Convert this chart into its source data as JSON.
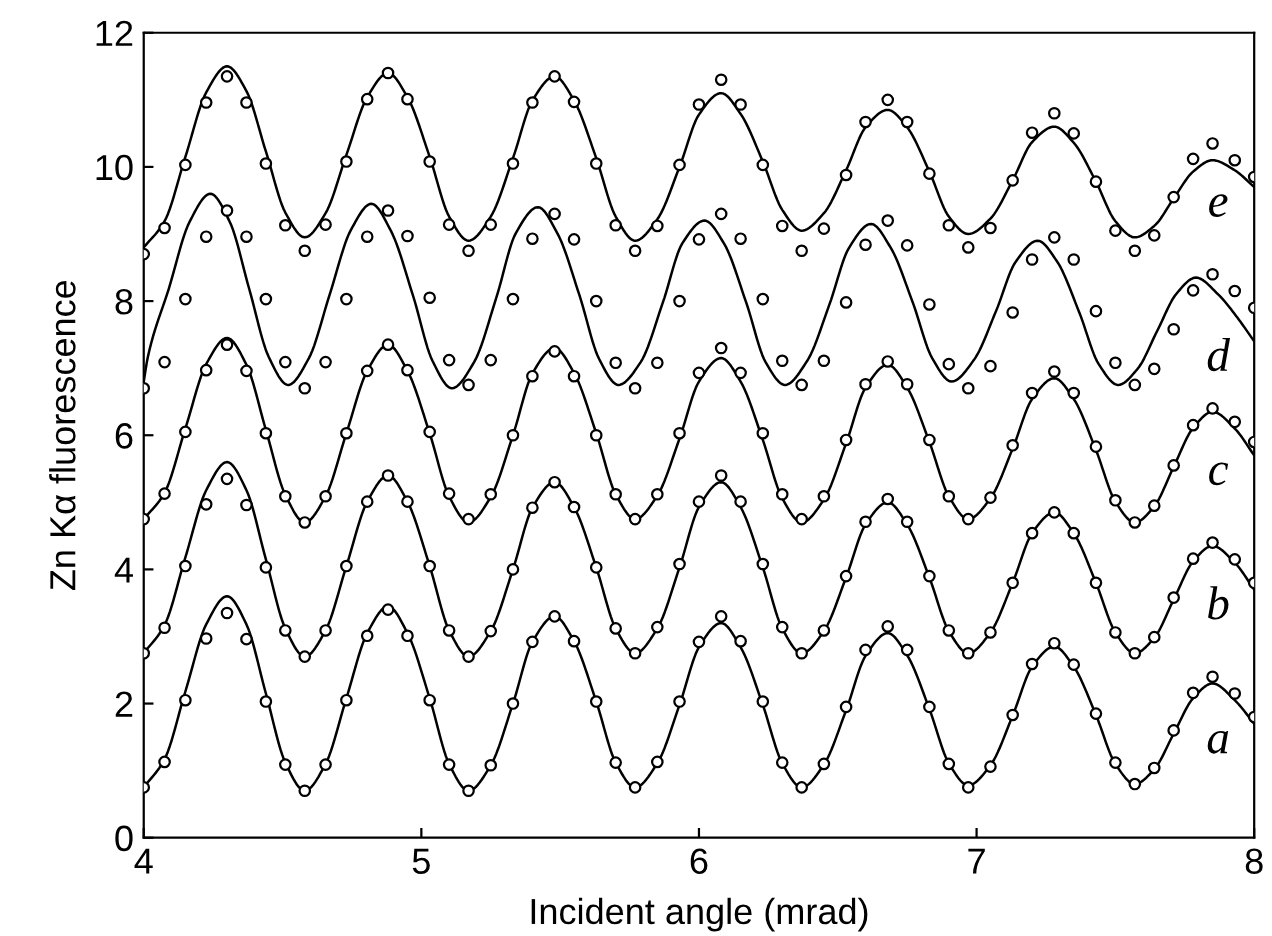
{
  "chart_data": {
    "type": "line",
    "xlabel": "Incident angle (mrad)",
    "ylabel": "Zn Kα fluorescence",
    "xlim": [
      4,
      8
    ],
    "xticks": [
      4,
      5,
      6,
      7,
      8
    ],
    "ylim": [
      0,
      12
    ],
    "yticks": [
      0,
      2,
      4,
      6,
      8,
      10,
      12
    ],
    "grid": false,
    "legend": false,
    "x": [
      4.0,
      4.075,
      4.15,
      4.225,
      4.3,
      4.37,
      4.44,
      4.51,
      4.58,
      4.655,
      4.73,
      4.805,
      4.88,
      4.95,
      5.03,
      5.1,
      5.17,
      5.25,
      5.33,
      5.4,
      5.48,
      5.55,
      5.63,
      5.7,
      5.77,
      5.85,
      5.93,
      6.0,
      6.08,
      6.15,
      6.23,
      6.3,
      6.37,
      6.45,
      6.53,
      6.6,
      6.68,
      6.75,
      6.83,
      6.9,
      6.97,
      7.05,
      7.13,
      7.2,
      7.28,
      7.35,
      7.43,
      7.5,
      7.57,
      7.64,
      7.71,
      7.78,
      7.85,
      7.93,
      8.0
    ],
    "series": [
      {
        "type": "line",
        "name": "a",
        "color": "#000000",
        "line_style": "solid",
        "values": [
          0.75,
          1.17,
          2.18,
          3.18,
          3.6,
          3.18,
          2.15,
          1.12,
          0.7,
          1.1,
          2.08,
          3.05,
          3.45,
          3.05,
          2.08,
          1.1,
          0.7,
          1.08,
          2.0,
          2.92,
          3.3,
          2.93,
          2.03,
          1.12,
          0.75,
          1.11,
          1.98,
          2.84,
          3.2,
          2.84,
          1.98,
          1.11,
          0.75,
          1.09,
          1.9,
          2.71,
          3.05,
          2.72,
          1.92,
          1.11,
          0.78,
          1.08,
          1.82,
          2.55,
          2.85,
          2.55,
          1.83,
          1.1,
          0.8,
          1.02,
          1.55,
          2.08,
          2.3,
          2.05,
          1.7
        ]
      },
      {
        "type": "scatter",
        "color": "#000000",
        "marker": "circle",
        "values": [
          0.75,
          1.13,
          2.05,
          2.97,
          3.35,
          2.96,
          2.03,
          1.09,
          0.7,
          1.09,
          2.05,
          3.01,
          3.4,
          3.01,
          2.05,
          1.09,
          0.7,
          1.08,
          2.0,
          2.92,
          3.3,
          2.93,
          2.03,
          1.12,
          0.75,
          1.13,
          2.03,
          2.92,
          3.3,
          2.93,
          2.03,
          1.12,
          0.75,
          1.1,
          1.95,
          2.8,
          3.15,
          2.8,
          1.95,
          1.1,
          0.75,
          1.06,
          1.83,
          2.59,
          2.9,
          2.58,
          1.85,
          1.12,
          0.8,
          1.04,
          1.6,
          2.16,
          2.4,
          2.15,
          1.8
        ]
      },
      {
        "type": "line",
        "name": "b",
        "color": "#000000",
        "line_style": "solid",
        "values": [
          2.75,
          3.17,
          4.18,
          5.18,
          5.6,
          5.18,
          4.15,
          3.12,
          2.7,
          3.09,
          4.05,
          5.01,
          5.4,
          5.01,
          4.05,
          3.09,
          2.7,
          3.08,
          4.0,
          4.92,
          5.3,
          4.93,
          4.03,
          3.12,
          2.75,
          3.12,
          4.03,
          4.93,
          5.3,
          4.93,
          4.03,
          3.12,
          2.75,
          3.08,
          3.88,
          4.67,
          5.0,
          4.67,
          3.88,
          3.08,
          2.75,
          3.06,
          3.8,
          4.54,
          4.85,
          4.54,
          3.8,
          3.06,
          2.75,
          2.98,
          3.55,
          4.12,
          4.35,
          4.1,
          3.7
        ]
      },
      {
        "type": "scatter",
        "color": "#000000",
        "marker": "circle",
        "values": [
          2.75,
          3.13,
          4.05,
          4.97,
          5.35,
          4.96,
          4.03,
          3.09,
          2.7,
          3.09,
          4.05,
          5.01,
          5.4,
          5.01,
          4.05,
          3.09,
          2.7,
          3.08,
          4.0,
          4.92,
          5.3,
          4.93,
          4.03,
          3.12,
          2.75,
          3.14,
          4.08,
          5.01,
          5.4,
          5.01,
          4.08,
          3.14,
          2.75,
          3.09,
          3.9,
          4.71,
          5.05,
          4.71,
          3.9,
          3.09,
          2.75,
          3.06,
          3.8,
          4.54,
          4.85,
          4.54,
          3.8,
          3.06,
          2.75,
          2.99,
          3.58,
          4.16,
          4.4,
          4.15,
          3.8
        ]
      },
      {
        "type": "line",
        "name": "c",
        "color": "#000000",
        "line_style": "solid",
        "values": [
          4.75,
          5.14,
          6.1,
          7.06,
          7.45,
          7.05,
          6.08,
          5.11,
          4.7,
          5.09,
          6.03,
          6.96,
          7.35,
          6.96,
          6.03,
          5.09,
          4.7,
          5.08,
          6.0,
          6.92,
          7.3,
          6.93,
          6.03,
          5.12,
          4.75,
          5.1,
          5.95,
          6.8,
          7.15,
          6.8,
          5.93,
          5.06,
          4.7,
          5.04,
          5.88,
          6.71,
          7.05,
          6.71,
          5.9,
          5.09,
          4.75,
          5.06,
          5.8,
          6.54,
          6.85,
          6.54,
          5.78,
          5.01,
          4.7,
          4.94,
          5.53,
          6.11,
          6.35,
          6.1,
          5.7
        ]
      },
      {
        "type": "scatter",
        "color": "#000000",
        "marker": "circle",
        "values": [
          4.75,
          5.13,
          6.05,
          6.97,
          7.35,
          6.96,
          6.03,
          5.09,
          4.7,
          5.09,
          6.03,
          6.96,
          7.35,
          6.97,
          6.05,
          5.13,
          4.75,
          5.12,
          6.0,
          6.88,
          7.25,
          6.88,
          6.0,
          5.12,
          4.75,
          5.12,
          6.03,
          6.93,
          7.3,
          6.93,
          6.03,
          5.12,
          4.75,
          5.09,
          5.93,
          6.76,
          7.1,
          6.76,
          5.93,
          5.09,
          4.75,
          5.07,
          5.85,
          6.63,
          6.95,
          6.63,
          5.83,
          5.03,
          4.7,
          4.95,
          5.55,
          6.15,
          6.4,
          6.2,
          5.9
        ]
      },
      {
        "type": "line",
        "name": "d",
        "color": "#000000",
        "line_style": "solid",
        "x": [
          4.0,
          4.015,
          4.09,
          4.165,
          4.24,
          4.31,
          4.38,
          4.45,
          4.52,
          4.595,
          4.67,
          4.745,
          4.82,
          4.89,
          4.97,
          5.04,
          5.11,
          5.19,
          5.27,
          5.34,
          5.42,
          5.49,
          5.57,
          5.64,
          5.71,
          5.79,
          5.87,
          5.94,
          6.02,
          6.09,
          6.17,
          6.24,
          6.31,
          6.39,
          6.47,
          6.54,
          6.62,
          6.69,
          6.77,
          6.84,
          6.91,
          6.99,
          7.07,
          7.14,
          7.22,
          7.29,
          7.37,
          7.44,
          7.51,
          7.58,
          7.65,
          7.72,
          7.79,
          7.87,
          7.94,
          8.0
        ],
        "values": [
          6.8,
          7.17,
          8.18,
          9.18,
          9.6,
          9.18,
          8.18,
          7.17,
          6.75,
          7.15,
          8.1,
          9.05,
          9.45,
          9.05,
          8.08,
          7.11,
          6.7,
          7.09,
          8.05,
          9.01,
          9.4,
          9.01,
          8.08,
          7.14,
          6.75,
          7.09,
          7.98,
          8.86,
          9.2,
          8.86,
          7.98,
          7.09,
          6.75,
          7.11,
          7.95,
          8.79,
          9.15,
          8.8,
          7.98,
          7.15,
          6.8,
          7.12,
          7.85,
          8.58,
          8.9,
          8.59,
          7.83,
          7.06,
          6.75,
          6.99,
          7.55,
          8.11,
          8.35,
          8.1,
          7.75,
          7.4
        ]
      },
      {
        "type": "scatter",
        "color": "#000000",
        "marker": "circle",
        "values": [
          6.7,
          7.09,
          8.03,
          8.96,
          9.35,
          8.96,
          8.03,
          7.09,
          6.7,
          7.09,
          8.03,
          8.96,
          9.35,
          8.97,
          8.05,
          7.12,
          6.75,
          7.12,
          8.03,
          8.93,
          9.3,
          8.92,
          8.0,
          7.08,
          6.7,
          7.08,
          8.0,
          8.92,
          9.3,
          8.93,
          8.03,
          7.11,
          6.75,
          7.11,
          7.98,
          8.84,
          9.2,
          8.83,
          7.95,
          7.06,
          6.7,
          7.03,
          7.83,
          8.62,
          8.95,
          8.62,
          7.85,
          7.08,
          6.75,
          6.99,
          7.58,
          8.16,
          8.4,
          8.15,
          7.9
        ]
      },
      {
        "type": "line",
        "name": "e",
        "color": "#000000",
        "line_style": "solid",
        "values": [
          8.8,
          9.19,
          10.15,
          11.11,
          11.5,
          11.13,
          10.23,
          9.32,
          8.95,
          9.31,
          10.18,
          11.04,
          11.4,
          11.04,
          10.15,
          9.26,
          8.9,
          9.26,
          10.13,
          10.99,
          11.35,
          10.99,
          10.13,
          9.26,
          8.9,
          9.22,
          10.0,
          10.78,
          11.1,
          10.79,
          10.08,
          9.36,
          9.05,
          9.31,
          9.95,
          10.59,
          10.85,
          10.59,
          9.93,
          9.26,
          9.0,
          9.23,
          9.8,
          10.37,
          10.6,
          10.36,
          9.78,
          9.19,
          8.95,
          9.12,
          9.53,
          9.93,
          10.1,
          9.95,
          9.7
        ]
      },
      {
        "type": "scatter",
        "color": "#000000",
        "marker": "circle",
        "values": [
          8.7,
          9.09,
          10.03,
          10.96,
          11.35,
          10.96,
          10.05,
          9.13,
          8.75,
          9.14,
          10.08,
          11.01,
          11.4,
          11.01,
          10.08,
          9.14,
          8.75,
          9.14,
          10.05,
          10.96,
          11.35,
          10.97,
          10.05,
          9.13,
          8.75,
          9.12,
          10.03,
          10.93,
          11.3,
          10.93,
          10.03,
          9.12,
          8.75,
          9.08,
          9.88,
          10.67,
          11.0,
          10.67,
          9.9,
          9.13,
          8.8,
          9.09,
          9.8,
          10.51,
          10.8,
          10.5,
          9.78,
          9.05,
          8.75,
          8.98,
          9.55,
          10.12,
          10.35,
          10.1,
          9.85
        ]
      }
    ]
  }
}
